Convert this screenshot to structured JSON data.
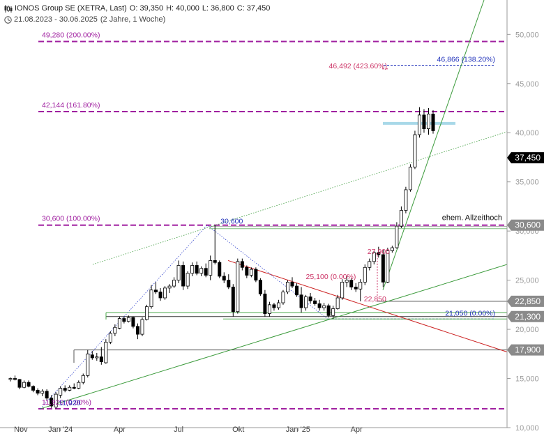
{
  "header": {
    "icon": "candlestick-icon",
    "name": "IONOS Group SE (XETRA, Last)",
    "open": "O: 39,350",
    "high": "H: 40,000",
    "low": "L: 36,800",
    "close": "C: 37,450",
    "range_icon": "clock-icon",
    "date_range": "21.08.2023 - 30.06.2025",
    "period": "(2 Jahre, 1 Woche)"
  },
  "chart_data": {
    "type": "candlestick",
    "title": "IONOS Group SE (XETRA, Last)",
    "y_axis": {
      "range": [
        10000,
        53500
      ],
      "ticks": [
        10000,
        15000,
        20000,
        25000,
        30000,
        35000,
        40000,
        45000,
        50000
      ],
      "tick_labels": [
        "10,000",
        "15,000",
        "20,000",
        "25,000",
        "30,000",
        "35,000",
        "40,000",
        "45,000",
        "50,000"
      ],
      "position": "right"
    },
    "x_axis": {
      "start": "2023-10-16",
      "end": "2025-07-28",
      "ticks": [
        {
          "date": "2023-11-01",
          "label": "Nov"
        },
        {
          "date": "2024-01-01",
          "label": "Jan '24"
        },
        {
          "date": "2024-04-01",
          "label": "Apr"
        },
        {
          "date": "2024-07-01",
          "label": "Jul"
        },
        {
          "date": "2024-10-01",
          "label": "Okt"
        },
        {
          "date": "2025-01-01",
          "label": "Jan '25"
        },
        {
          "date": "2025-04-01",
          "label": "Apr"
        }
      ]
    },
    "candles": [
      [
        "2023-10-16",
        14900,
        15100,
        14700,
        15000
      ],
      [
        "2023-10-23",
        15000,
        15300,
        14800,
        14900
      ],
      [
        "2023-10-30",
        14900,
        14950,
        13900,
        14100
      ],
      [
        "2023-11-06",
        14100,
        14800,
        14000,
        14600
      ],
      [
        "2023-11-13",
        14600,
        14800,
        14100,
        14200
      ],
      [
        "2023-11-20",
        14200,
        14300,
        13600,
        13800
      ],
      [
        "2023-11-27",
        13800,
        14000,
        13300,
        13500
      ],
      [
        "2023-12-04",
        13500,
        13900,
        13200,
        13700
      ],
      [
        "2023-12-11",
        13700,
        13900,
        12800,
        13000
      ],
      [
        "2023-12-18",
        13000,
        13300,
        12000,
        12200
      ],
      [
        "2023-12-25",
        12100,
        13600,
        11920,
        13400
      ],
      [
        "2024-01-01",
        13300,
        14200,
        13000,
        14000
      ],
      [
        "2024-01-08",
        14000,
        14300,
        13600,
        13800
      ],
      [
        "2024-01-15",
        13800,
        14300,
        13700,
        14100
      ],
      [
        "2024-01-22",
        14100,
        14500,
        13900,
        14000
      ],
      [
        "2024-01-29",
        14000,
        14800,
        13900,
        14600
      ],
      [
        "2024-02-05",
        14600,
        15500,
        14400,
        15300
      ],
      [
        "2024-02-12",
        15300,
        17900,
        15100,
        17500
      ],
      [
        "2024-02-19",
        17400,
        17800,
        16900,
        17100
      ],
      [
        "2024-02-26",
        17100,
        17600,
        16800,
        17200
      ],
      [
        "2024-03-04",
        17200,
        18200,
        16400,
        16700
      ],
      [
        "2024-03-11",
        16600,
        19000,
        16500,
        18700
      ],
      [
        "2024-03-18",
        18700,
        19800,
        18500,
        19600
      ],
      [
        "2024-03-25",
        19600,
        20500,
        19300,
        20200
      ],
      [
        "2024-04-01",
        20100,
        21300,
        20000,
        21100
      ],
      [
        "2024-04-08",
        21100,
        21300,
        20600,
        20800
      ],
      [
        "2024-04-15",
        20800,
        21400,
        20700,
        21200
      ],
      [
        "2024-04-22",
        21200,
        21300,
        20100,
        20300
      ],
      [
        "2024-04-29",
        20300,
        20600,
        19000,
        19500
      ],
      [
        "2024-05-06",
        19500,
        21200,
        19300,
        21000
      ],
      [
        "2024-05-13",
        21000,
        22500,
        20900,
        22300
      ],
      [
        "2024-05-20",
        22300,
        24500,
        22100,
        24000
      ],
      [
        "2024-05-27",
        24000,
        24800,
        23600,
        23800
      ],
      [
        "2024-06-03",
        23800,
        24200,
        22900,
        23200
      ],
      [
        "2024-06-10",
        23200,
        24400,
        23000,
        24200
      ],
      [
        "2024-06-17",
        24200,
        24600,
        23700,
        24400
      ],
      [
        "2024-06-24",
        24400,
        25300,
        24200,
        25000
      ],
      [
        "2024-07-01",
        25000,
        27000,
        24700,
        26500
      ],
      [
        "2024-07-08",
        26500,
        26900,
        24000,
        24400
      ],
      [
        "2024-07-15",
        24400,
        25900,
        24100,
        25700
      ],
      [
        "2024-07-22",
        25700,
        26800,
        25400,
        26500
      ],
      [
        "2024-07-29",
        26500,
        26900,
        25500,
        25700
      ],
      [
        "2024-08-05",
        25700,
        26400,
        25400,
        26200
      ],
      [
        "2024-08-12",
        26200,
        26700,
        25300,
        25500
      ],
      [
        "2024-08-19",
        25500,
        27500,
        25000,
        27000
      ],
      [
        "2024-08-26",
        27000,
        30600,
        26600,
        26800
      ],
      [
        "2024-09-02",
        26800,
        27000,
        25200,
        25400
      ],
      [
        "2024-09-09",
        25400,
        25800,
        24700,
        25000
      ],
      [
        "2024-09-16",
        25000,
        25600,
        24100,
        24300
      ],
      [
        "2024-09-23",
        24300,
        24600,
        21300,
        21800
      ],
      [
        "2024-09-30",
        21800,
        27200,
        21600,
        26900
      ],
      [
        "2024-10-07",
        26900,
        27200,
        26000,
        26300
      ],
      [
        "2024-10-14",
        26300,
        26500,
        25200,
        25500
      ],
      [
        "2024-10-21",
        25500,
        26300,
        25300,
        26100
      ],
      [
        "2024-10-28",
        26100,
        26300,
        24800,
        25000
      ],
      [
        "2024-11-04",
        25000,
        25200,
        23400,
        23600
      ],
      [
        "2024-11-11",
        23600,
        24000,
        21300,
        21600
      ],
      [
        "2024-11-18",
        21600,
        22800,
        21300,
        22500
      ],
      [
        "2024-11-25",
        22500,
        22700,
        21900,
        22200
      ],
      [
        "2024-12-02",
        22200,
        23000,
        22000,
        22700
      ],
      [
        "2024-12-09",
        22700,
        24000,
        22500,
        23800
      ],
      [
        "2024-12-16",
        23800,
        25000,
        23600,
        24800
      ],
      [
        "2024-12-23",
        24800,
        25300,
        24200,
        24400
      ],
      [
        "2024-12-30",
        24400,
        24700,
        23300,
        23500
      ],
      [
        "2025-01-06",
        23500,
        24300,
        21700,
        22200
      ],
      [
        "2025-01-13",
        22200,
        23500,
        21900,
        23300
      ],
      [
        "2025-01-20",
        23300,
        23700,
        22600,
        22900
      ],
      [
        "2025-01-27",
        22900,
        23200,
        22400,
        22600
      ],
      [
        "2025-02-03",
        22600,
        23000,
        21900,
        22200
      ],
      [
        "2025-02-10",
        22200,
        22700,
        21900,
        22400
      ],
      [
        "2025-02-17",
        22400,
        22600,
        21200,
        21400
      ],
      [
        "2025-02-24",
        21400,
        22400,
        21050,
        22100
      ],
      [
        "2025-03-03",
        22100,
        23500,
        22000,
        23200
      ],
      [
        "2025-03-10",
        23200,
        25100,
        23000,
        24800
      ],
      [
        "2025-03-17",
        24800,
        25400,
        24300,
        25000
      ],
      [
        "2025-03-24",
        25000,
        25200,
        24000,
        24300
      ],
      [
        "2025-03-31",
        24300,
        24700,
        23800,
        24100
      ],
      [
        "2025-04-07",
        24100,
        25100,
        22850,
        24800
      ],
      [
        "2025-04-14",
        24800,
        26600,
        24500,
        26300
      ],
      [
        "2025-04-21",
        26300,
        27200,
        26000,
        26900
      ],
      [
        "2025-04-28",
        26900,
        28000,
        26600,
        27800
      ],
      [
        "2025-05-05",
        27800,
        28400,
        27300,
        27600
      ],
      [
        "2025-05-12",
        27600,
        28100,
        24300,
        24800
      ],
      [
        "2025-05-19",
        24800,
        28300,
        24700,
        28000
      ],
      [
        "2025-05-26",
        28000,
        28500,
        27800,
        28300
      ],
      [
        "2025-06-02",
        28300,
        30900,
        28200,
        30500
      ],
      [
        "2025-06-09",
        30500,
        32500,
        30300,
        32100
      ],
      [
        "2025-06-16",
        32100,
        34500,
        31800,
        34200
      ],
      [
        "2025-06-23",
        34200,
        36800,
        34000,
        36500
      ],
      [
        "2025-06-30",
        36500,
        40200,
        36300,
        39800
      ],
      [
        "2025-07-07",
        39800,
        42600,
        39500,
        41800
      ],
      [
        "2025-07-14",
        41800,
        42400,
        40000,
        40400
      ],
      [
        "2025-07-21",
        40400,
        42500,
        39800,
        41900
      ],
      [
        "2025-07-28",
        41900,
        42300,
        39900,
        40200
      ]
    ],
    "levels": [
      {
        "value": 49280,
        "label": "49,280 (200.00%)",
        "style": "fib"
      },
      {
        "value": 42144,
        "label": "42,144 (161.80%)",
        "style": "fib"
      },
      {
        "value": 30600,
        "label": "30,600 (100.00%)",
        "style": "fib"
      },
      {
        "value": 11920,
        "label": "11,920 (0.00%)",
        "style": "fib"
      },
      {
        "value": 46866,
        "label": "46,866 (138.20%)",
        "style": "blue-dashed"
      },
      {
        "value": 46492,
        "label": "46,492 (423.60%)",
        "style": "pink-dashed"
      },
      {
        "value": 21050,
        "label": "21,050 (0.00%)",
        "style": "blue-dashed"
      }
    ],
    "point_labels": [
      {
        "text": "30,600",
        "date": "2024-08-26",
        "value": 30600,
        "color": "#2233bb"
      },
      {
        "text": "11,920",
        "date": "2023-12-25",
        "value": 11920,
        "color": "#2233bb"
      },
      {
        "text": "25,100 (0.00%)",
        "date": "2025-01-13",
        "value": 25100,
        "color": "#cc3366"
      },
      {
        "text": "22,850",
        "date": "2025-04-07",
        "value": 22850,
        "color": "#cc3366"
      },
      {
        "text": "27,900",
        "date": "2025-04-21",
        "value": 27900,
        "color": "#cc3366"
      }
    ],
    "annotation": {
      "text": "ehem. Allzeithoch",
      "value": 30600
    },
    "price_tags": [
      {
        "value": 37450,
        "label": "37,450",
        "style": "black"
      },
      {
        "value": 30600,
        "label": "30,600",
        "style": "gray"
      },
      {
        "value": 22850,
        "label": "22,850",
        "style": "gray"
      },
      {
        "value": 21300,
        "label": "21,300",
        "style": "gray"
      },
      {
        "value": 17900,
        "label": "17,900",
        "style": "gray"
      }
    ],
    "grid": false,
    "legend": "none"
  }
}
